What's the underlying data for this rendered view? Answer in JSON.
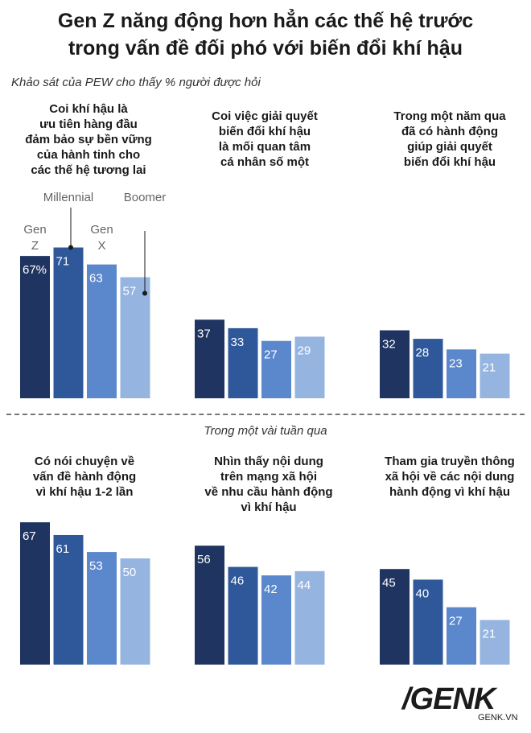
{
  "header": {
    "title_line1": "Gen Z năng động hơn hẳn các thế hệ trước",
    "title_line2": "trong vấn đề đối phó với biến đổi khí hậu",
    "subtitle": "Khảo sát của PEW cho thấy % người được hỏi",
    "subtitle2": "Trong một vài tuần qua"
  },
  "colors": {
    "gen_z": "#1f3460",
    "millennial": "#2e5899",
    "gen_x": "#5b87cc",
    "boomer": "#95b4e0"
  },
  "generation_labels": {
    "gen_z_line1": "Gen",
    "gen_z_line2": "Z",
    "millennial": "Millennial",
    "gen_x_line1": "Gen",
    "gen_x_line2": "X",
    "boomer": "Boomer"
  },
  "chart_data": [
    {
      "type": "bar",
      "title": "Coi khí hậu là\nưu tiên hàng đầu\nđảm bảo sự bền vững\ncủa hành tinh cho\ncác thế hệ tương lai",
      "categories": [
        "Gen Z",
        "Millennial",
        "Gen X",
        "Boomer"
      ],
      "values": [
        67,
        71,
        63,
        57
      ],
      "labels": [
        "67%",
        "71",
        "63",
        "57"
      ],
      "ylim": [
        0,
        100
      ]
    },
    {
      "type": "bar",
      "title": "Coi việc giải quyết\nbiến đổi khí hậu\nlà mối quan tâm\ncá nhân số một",
      "categories": [
        "Gen Z",
        "Millennial",
        "Gen X",
        "Boomer"
      ],
      "values": [
        37,
        33,
        27,
        29
      ],
      "labels": [
        "37",
        "33",
        "27",
        "29"
      ],
      "ylim": [
        0,
        100
      ]
    },
    {
      "type": "bar",
      "title": "Trong một năm qua\nđã có hành động\ngiúp giải quyết\nbiến đổi khí hậu",
      "categories": [
        "Gen Z",
        "Millennial",
        "Gen X",
        "Boomer"
      ],
      "values": [
        32,
        28,
        23,
        21
      ],
      "labels": [
        "32",
        "28",
        "23",
        "21"
      ],
      "ylim": [
        0,
        100
      ]
    },
    {
      "type": "bar",
      "title": "Có nói chuyện về\nvấn đề hành động\nvì khí hậu 1-2 lần",
      "categories": [
        "Gen Z",
        "Millennial",
        "Gen X",
        "Boomer"
      ],
      "values": [
        67,
        61,
        53,
        50
      ],
      "labels": [
        "67",
        "61",
        "53",
        "50"
      ],
      "ylim": [
        0,
        100
      ]
    },
    {
      "type": "bar",
      "title": "Nhìn thấy nội dung\ntrên mạng xã hội\nvề nhu cầu hành động\nvì khí hậu",
      "categories": [
        "Gen Z",
        "Millennial",
        "Gen X",
        "Boomer"
      ],
      "values": [
        56,
        46,
        42,
        44
      ],
      "labels": [
        "56",
        "46",
        "42",
        "44"
      ],
      "ylim": [
        0,
        100
      ]
    },
    {
      "type": "bar",
      "title": "Tham gia truyền thông\nxã hội về các nội dung\nhành động vì khí hậu",
      "categories": [
        "Gen Z",
        "Millennial",
        "Gen X",
        "Boomer"
      ],
      "values": [
        45,
        40,
        27,
        21
      ],
      "labels": [
        "45",
        "40",
        "27",
        "21"
      ],
      "ylim": [
        0,
        100
      ]
    }
  ],
  "branding": {
    "logo": "/GENK",
    "site": "GENK.VN"
  }
}
